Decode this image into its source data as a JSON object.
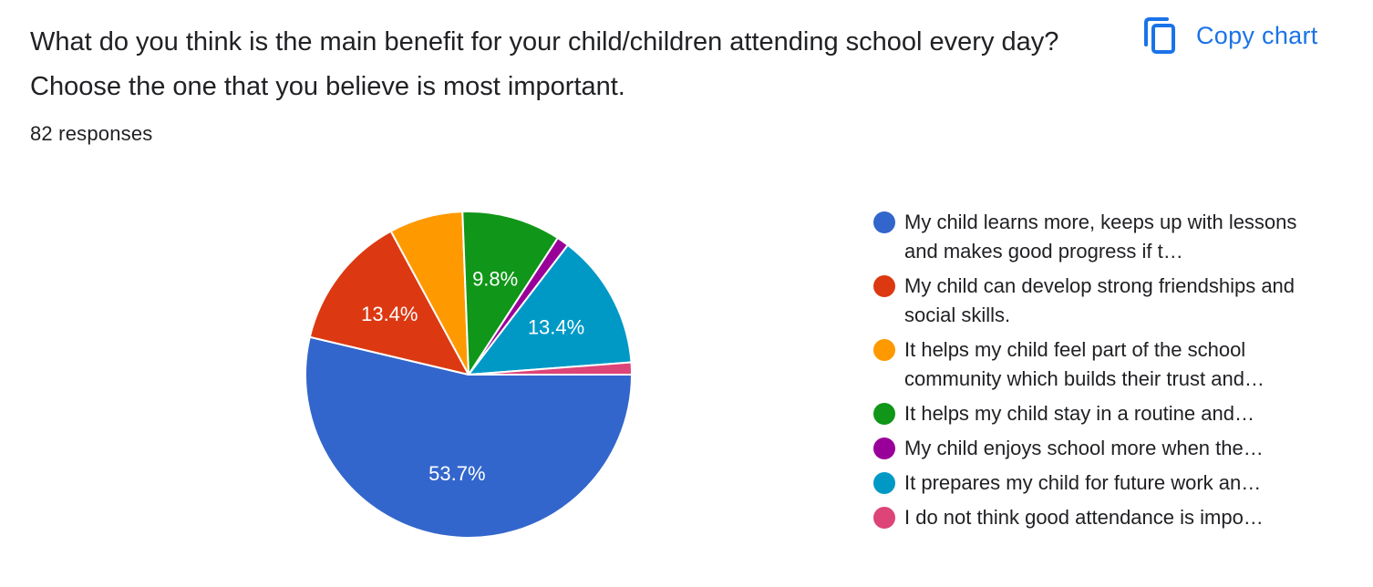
{
  "header": {
    "title": "What do you think is the main benefit for your child/children attending school every day? Choose the one that you believe is most important.",
    "responses": "82 responses",
    "copy_chart_label": "Copy chart",
    "copy_icon": "copy-icon"
  },
  "colors": {
    "accent": "#1a73e8"
  },
  "chart_data": {
    "type": "pie",
    "total_responses": 82,
    "slices": [
      {
        "name": "My child learns more, keeps up with lessons and makes good progress if t…",
        "value": 53.7,
        "label": "53.7%",
        "color": "#3366cc"
      },
      {
        "name": "My child can develop strong friendships and social skills.",
        "value": 13.4,
        "label": "13.4%",
        "color": "#dc3912"
      },
      {
        "name": "It helps my child feel part of the school community which builds their trust and…",
        "value": 7.3,
        "label": "",
        "color": "#ff9900"
      },
      {
        "name": "It helps my child stay in a routine and…",
        "value": 9.8,
        "label": "9.8%",
        "color": "#109618"
      },
      {
        "name": "My child enjoys school more when the…",
        "value": 1.2,
        "label": "",
        "color": "#990099"
      },
      {
        "name": "It prepares my child for future work an…",
        "value": 13.4,
        "label": "13.4%",
        "color": "#0099c6"
      },
      {
        "name": "I do not think good attendance is impo…",
        "value": 1.2,
        "label": "",
        "color": "#dd4477"
      }
    ]
  }
}
